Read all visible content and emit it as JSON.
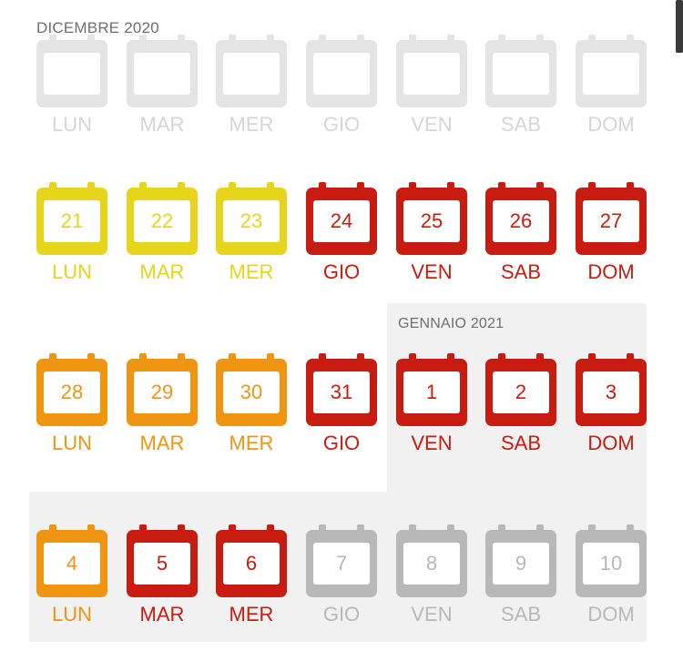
{
  "colors": {
    "yellow": "#e6d51c",
    "orange": "#ef9512",
    "red": "#c81c10",
    "gray": "#b8b8b8",
    "faded": "#e4e4e4"
  },
  "headers": {
    "december": "DICEMBRE 2020",
    "january": "GENNAIO 2021"
  },
  "weeks": [
    {
      "days": [
        {
          "num": "",
          "dow": "LUN",
          "color": "faded"
        },
        {
          "num": "",
          "dow": "MAR",
          "color": "faded"
        },
        {
          "num": "",
          "dow": "MER",
          "color": "faded"
        },
        {
          "num": "",
          "dow": "GIO",
          "color": "faded"
        },
        {
          "num": "",
          "dow": "VEN",
          "color": "faded"
        },
        {
          "num": "",
          "dow": "SAB",
          "color": "faded"
        },
        {
          "num": "",
          "dow": "DOM",
          "color": "faded"
        }
      ]
    },
    {
      "days": [
        {
          "num": "21",
          "dow": "LUN",
          "color": "yellow"
        },
        {
          "num": "22",
          "dow": "MAR",
          "color": "yellow"
        },
        {
          "num": "23",
          "dow": "MER",
          "color": "yellow"
        },
        {
          "num": "24",
          "dow": "GIO",
          "color": "red"
        },
        {
          "num": "25",
          "dow": "VEN",
          "color": "red"
        },
        {
          "num": "26",
          "dow": "SAB",
          "color": "red"
        },
        {
          "num": "27",
          "dow": "DOM",
          "color": "red"
        }
      ]
    },
    {
      "days": [
        {
          "num": "28",
          "dow": "LUN",
          "color": "orange"
        },
        {
          "num": "29",
          "dow": "MAR",
          "color": "orange"
        },
        {
          "num": "30",
          "dow": "MER",
          "color": "orange"
        },
        {
          "num": "31",
          "dow": "GIO",
          "color": "red"
        },
        {
          "num": "1",
          "dow": "VEN",
          "color": "red"
        },
        {
          "num": "2",
          "dow": "SAB",
          "color": "red"
        },
        {
          "num": "3",
          "dow": "DOM",
          "color": "red"
        }
      ]
    },
    {
      "days": [
        {
          "num": "4",
          "dow": "LUN",
          "color": "orange"
        },
        {
          "num": "5",
          "dow": "MAR",
          "color": "red"
        },
        {
          "num": "6",
          "dow": "MER",
          "color": "red"
        },
        {
          "num": "7",
          "dow": "GIO",
          "color": "gray"
        },
        {
          "num": "8",
          "dow": "VEN",
          "color": "gray"
        },
        {
          "num": "9",
          "dow": "SAB",
          "color": "gray"
        },
        {
          "num": "10",
          "dow": "DOM",
          "color": "gray"
        }
      ]
    }
  ]
}
